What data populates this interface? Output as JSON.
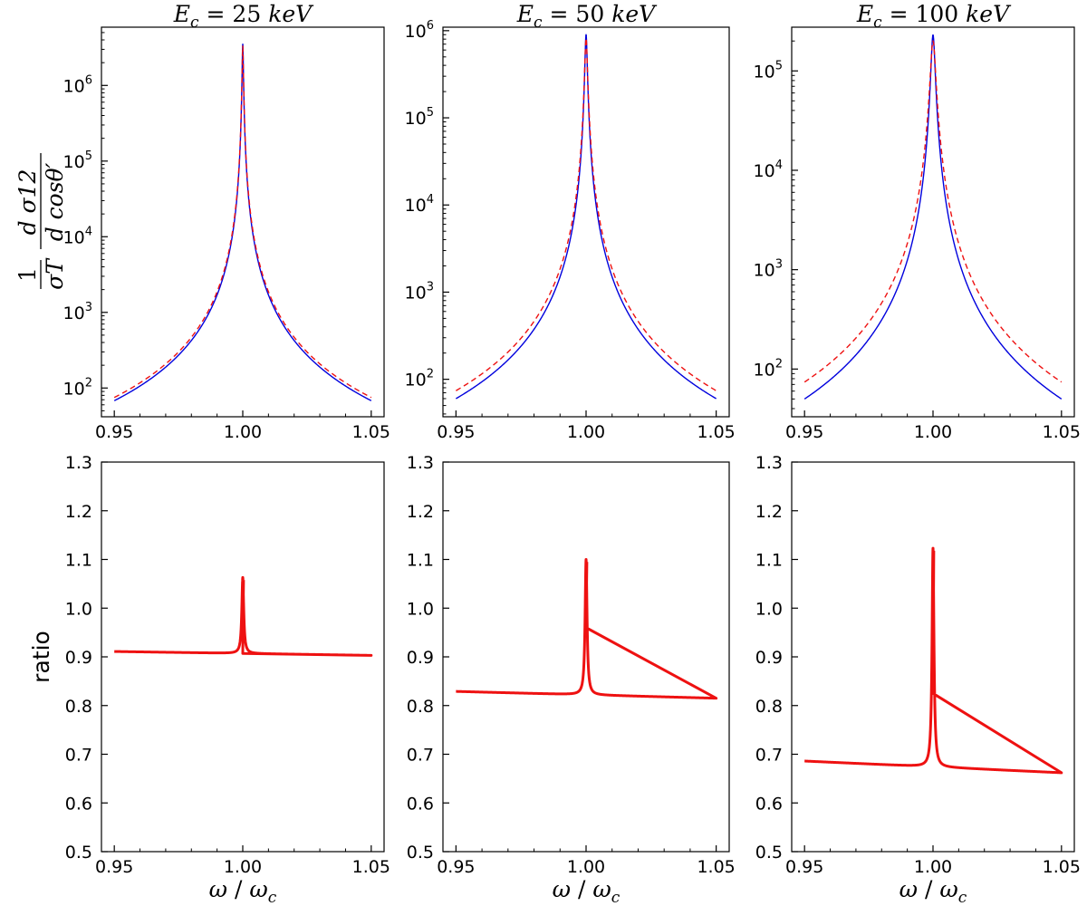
{
  "chart_data": [
    {
      "type": "line",
      "yscale": "log",
      "title": "E_c = 25 keV",
      "title_parts": {
        "E": "E",
        "c": "c",
        "eq": " = 25 ",
        "unit": "keV"
      },
      "ylabel": "1/σT dσ12/dcosθ′",
      "ylabel_parts": {
        "one": "1",
        "sigma_t": "σT",
        "numer": "d σ12",
        "denom": "d cosθ′"
      },
      "xlim": [
        0.945,
        1.055
      ],
      "ylim_log10": [
        1.62,
        6.77
      ],
      "xticks": [
        0.95,
        1.0,
        1.05
      ],
      "xtick_labels": [
        "0.95",
        "1.00",
        "1.05"
      ],
      "ytick_exponents": [
        2,
        3,
        4,
        5,
        6
      ],
      "ytick_labels": [
        "10",
        "10",
        "10",
        "10",
        "10"
      ],
      "series": [
        {
          "name": "blue solid",
          "color": "#0000dd",
          "dash": "none",
          "endpoint": 68,
          "peak": 3500000
        },
        {
          "name": "red dashed",
          "color": "#ee1111",
          "dash": "6,4",
          "endpoint": 75,
          "peak": 3300000
        }
      ]
    },
    {
      "type": "line",
      "yscale": "log",
      "title": "E_c = 50 keV",
      "title_parts": {
        "E": "E",
        "c": "c",
        "eq": " = 50 ",
        "unit": "keV"
      },
      "xlim": [
        0.945,
        1.055
      ],
      "ylim_log10": [
        1.57,
        6.04
      ],
      "xticks": [
        0.95,
        1.0,
        1.05
      ],
      "xtick_labels": [
        "0.95",
        "1.00",
        "1.05"
      ],
      "ytick_exponents": [
        2,
        3,
        4,
        5,
        6
      ],
      "ytick_labels": [
        "10",
        "10",
        "10",
        "10",
        "10"
      ],
      "series": [
        {
          "name": "blue solid",
          "color": "#0000dd",
          "dash": "none",
          "endpoint": 60,
          "peak": 900000
        },
        {
          "name": "red dashed",
          "color": "#ee1111",
          "dash": "6,4",
          "endpoint": 74,
          "peak": 820000
        }
      ]
    },
    {
      "type": "line",
      "yscale": "log",
      "title": "E_c = 100 keV",
      "title_parts": {
        "E": "E",
        "c": "c",
        "eq": " = 100 ",
        "unit": "keV"
      },
      "xlim": [
        0.945,
        1.055
      ],
      "ylim_log10": [
        1.52,
        5.44
      ],
      "xticks": [
        0.95,
        1.0,
        1.05
      ],
      "xtick_labels": [
        "0.95",
        "1.00",
        "1.05"
      ],
      "ytick_exponents": [
        2,
        3,
        4,
        5
      ],
      "ytick_labels": [
        "10",
        "10",
        "10",
        "10"
      ],
      "series": [
        {
          "name": "blue solid",
          "color": "#0000dd",
          "dash": "none",
          "endpoint": 50,
          "peak": 230000
        },
        {
          "name": "red dashed",
          "color": "#ee1111",
          "dash": "6,4",
          "endpoint": 74,
          "peak": 200000
        }
      ]
    },
    {
      "type": "line",
      "yscale": "linear",
      "ylabel": "ratio",
      "xlabel": "ω / ωc",
      "xlabel_parts": {
        "w": "ω",
        "slash": " / ",
        "w2": "ω",
        "c": "c"
      },
      "xlim": [
        0.945,
        1.055
      ],
      "ylim": [
        0.5,
        1.3
      ],
      "xticks": [
        0.95,
        1.0,
        1.05
      ],
      "xtick_labels": [
        "0.95",
        "1.00",
        "1.05"
      ],
      "yticks": [
        0.5,
        0.6,
        0.7,
        0.8,
        0.9,
        1.0,
        1.1,
        1.2,
        1.3
      ],
      "ytick_labels": [
        "0.5",
        "0.6",
        "0.7",
        "0.8",
        "0.9",
        "1.0",
        "1.1",
        "1.2",
        "1.3"
      ],
      "series": [
        {
          "name": "ratio",
          "color": "#ee1111",
          "left": 0.911,
          "right": 0.903,
          "base": 0.907,
          "peak": 1.063,
          "min_at_peak": 0.907
        }
      ]
    },
    {
      "type": "line",
      "yscale": "linear",
      "xlabel": "ω / ωc",
      "xlabel_parts": {
        "w": "ω",
        "slash": " / ",
        "w2": "ω",
        "c": "c"
      },
      "xlim": [
        0.945,
        1.055
      ],
      "ylim": [
        0.5,
        1.3
      ],
      "xticks": [
        0.95,
        1.0,
        1.05
      ],
      "xtick_labels": [
        "0.95",
        "1.00",
        "1.05"
      ],
      "yticks": [
        0.5,
        0.6,
        0.7,
        0.8,
        0.9,
        1.0,
        1.1,
        1.2,
        1.3
      ],
      "ytick_labels": [
        "0.5",
        "0.6",
        "0.7",
        "0.8",
        "0.9",
        "1.0",
        "1.1",
        "1.2",
        "1.3"
      ],
      "series": [
        {
          "name": "ratio",
          "color": "#ee1111",
          "left": 0.829,
          "right": 0.815,
          "base": 0.822,
          "peak": 1.1,
          "min_at_peak": 0.96
        }
      ]
    },
    {
      "type": "line",
      "yscale": "linear",
      "xlabel": "ω / ωc",
      "xlabel_parts": {
        "w": "ω",
        "slash": " / ",
        "w2": "ω",
        "c": "c"
      },
      "xlim": [
        0.945,
        1.055
      ],
      "ylim": [
        0.5,
        1.3
      ],
      "xticks": [
        0.95,
        1.0,
        1.05
      ],
      "xtick_labels": [
        "0.95",
        "1.00",
        "1.05"
      ],
      "yticks": [
        0.5,
        0.6,
        0.7,
        0.8,
        0.9,
        1.0,
        1.1,
        1.2,
        1.3
      ],
      "ytick_labels": [
        "0.5",
        "0.6",
        "0.7",
        "0.8",
        "0.9",
        "1.0",
        "1.1",
        "1.2",
        "1.3"
      ],
      "series": [
        {
          "name": "ratio",
          "color": "#ee1111",
          "left": 0.686,
          "right": 0.662,
          "base": 0.68,
          "peak": 1.123,
          "min_at_peak": 0.825
        }
      ]
    }
  ]
}
